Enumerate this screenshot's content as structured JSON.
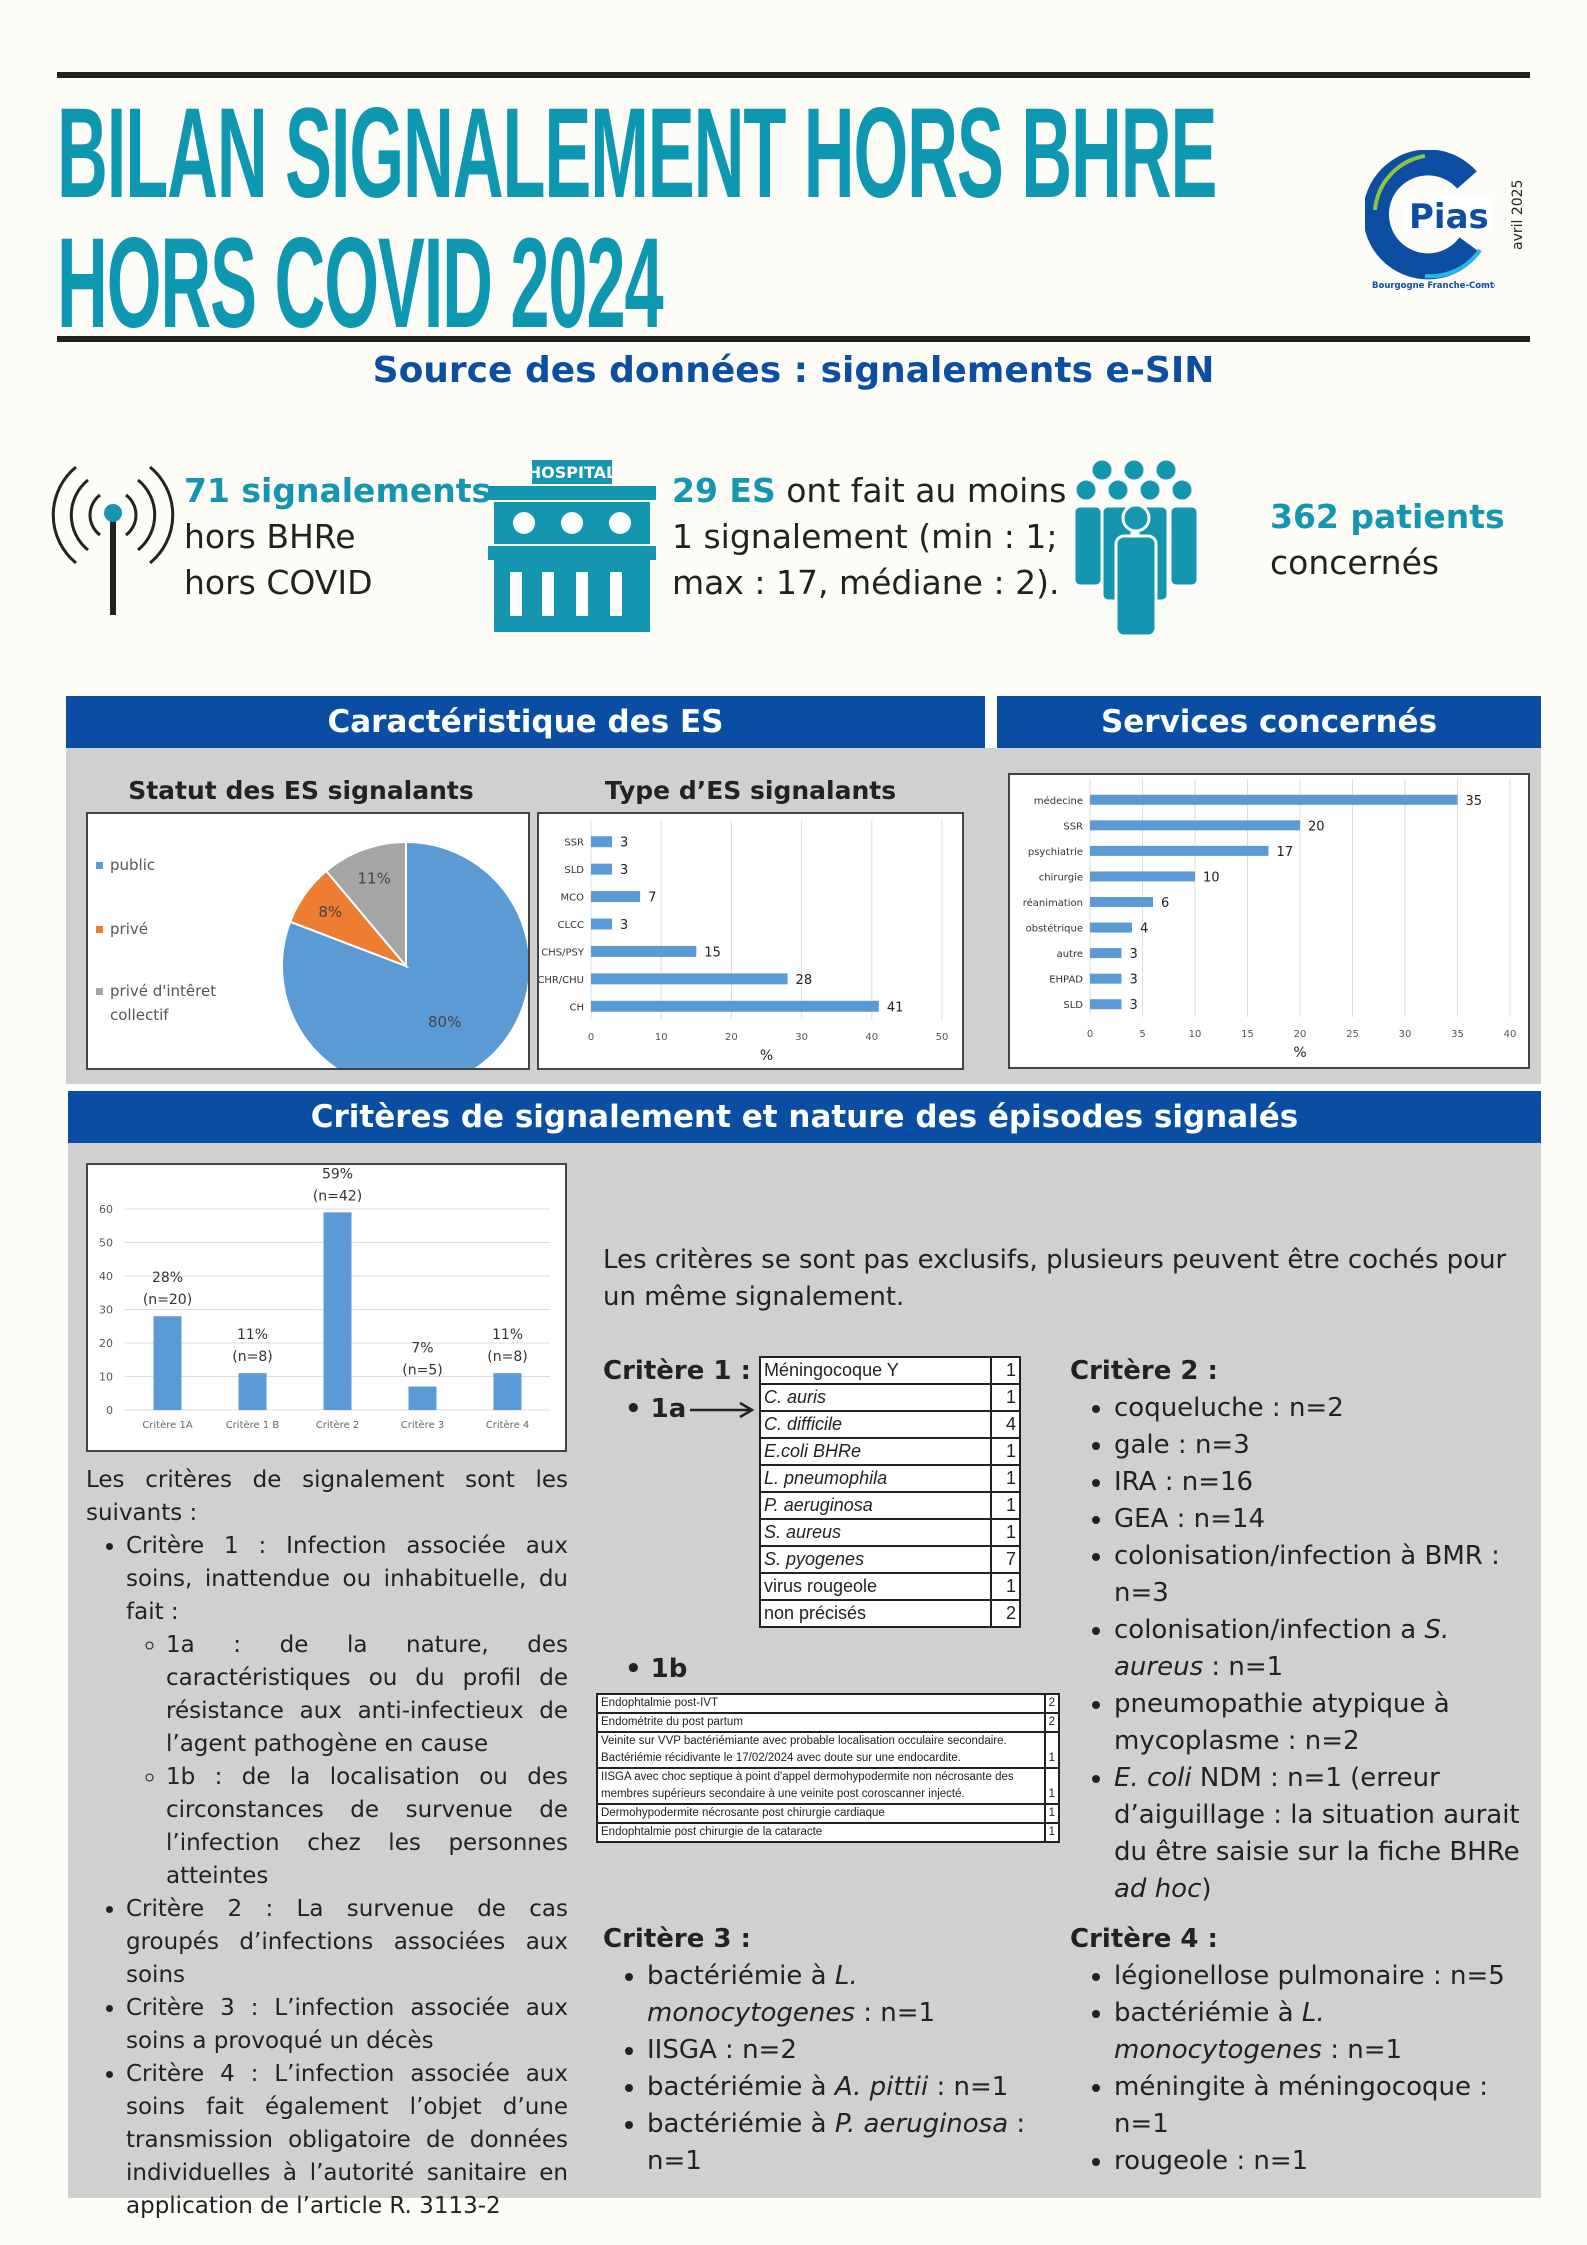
{
  "header": {
    "title_line1": "BILAN SIGNALEMENT HORS BHRE",
    "title_line2": "HORS COVID 2024",
    "date": "avril 2025",
    "logo_text": "Pias",
    "logo_region": "Bourgogne Franche-Comté",
    "source": "Source des données : signalements e-SIN"
  },
  "stats": [
    {
      "icon": "antenna-icon",
      "bold": "71 signalements",
      "lines": [
        "hors BHRe",
        "hors COVID"
      ]
    },
    {
      "icon": "hospital-icon",
      "icon_label": "HOSPITAL",
      "bold": "29 ES",
      "rest": " ont fait au moins",
      "lines": [
        "1 signalement (min : 1;",
        "max : 17, médiane : 2)."
      ]
    },
    {
      "icon": "people-icon",
      "bold": "362 patients",
      "lines": [
        "concernés"
      ]
    }
  ],
  "sections": {
    "es": "Caractéristique des ES",
    "services": "Services concernés",
    "criteres": "Critères de signalement et nature des épisodes signalés"
  },
  "colors": {
    "accent": "#0e97b1",
    "header_blue": "#0a4ea3",
    "bar": "#5b9bd5",
    "orange": "#ed7d31",
    "grey": "#a5a5a5"
  },
  "chart_data": [
    {
      "type": "pie",
      "title": "Statut des ES signalants",
      "categories": [
        "public",
        "privé",
        "privé d'intêret collectif"
      ],
      "values": [
        80,
        8,
        11
      ],
      "labels": [
        "80%",
        "8%",
        "11%"
      ]
    },
    {
      "type": "bar",
      "orientation": "horizontal",
      "title": "Type d’ES signalants",
      "categories": [
        "SSR",
        "SLD",
        "MCO",
        "CLCC",
        "CHS/PSY",
        "CHR/CHU",
        "CH"
      ],
      "values": [
        3,
        3,
        7,
        3,
        15,
        28,
        41
      ],
      "xlabel": "%",
      "xlim": [
        0,
        50
      ],
      "ticks": [
        0,
        10,
        20,
        30,
        40,
        50
      ],
      "grid": true
    },
    {
      "type": "bar",
      "orientation": "horizontal",
      "title": "",
      "categories": [
        "médecine",
        "SSR",
        "psychiatrie",
        "chirurgie",
        "réanimation",
        "obstétrique",
        "autre",
        "EHPAD",
        "SLD"
      ],
      "values": [
        35,
        20,
        17,
        10,
        6,
        4,
        3,
        3,
        3
      ],
      "xlabel": "%",
      "xlim": [
        0,
        40
      ],
      "ticks": [
        0,
        5,
        10,
        15,
        20,
        25,
        30,
        35,
        40
      ],
      "grid": true
    },
    {
      "type": "bar",
      "orientation": "vertical",
      "title": "",
      "categories": [
        "Critère 1A",
        "Critère 1 B",
        "Critère 2",
        "Critère 3",
        "Critère 4"
      ],
      "values": [
        28,
        11,
        59,
        7,
        11
      ],
      "labels": [
        [
          "28%",
          "(n=20)"
        ],
        [
          "11%",
          "(n=8)"
        ],
        [
          "59%",
          "(n=42)"
        ],
        [
          "7%",
          "(n=5)"
        ],
        [
          "11%",
          "(n=8)"
        ]
      ],
      "ylim": [
        0,
        60
      ],
      "ticks": [
        0,
        10,
        20,
        30,
        40,
        50,
        60
      ],
      "grid": true
    }
  ],
  "left_text": {
    "intro": "Les critères de signalement sont les suivants :",
    "c1": "Critère 1 : Infection associée aux soins, inattendue ou inhabituelle, du fait :",
    "c1a": "1a : de la nature, des caractéristiques ou du profil de résistance aux anti-infectieux de l’agent pathogène en cause",
    "c1b": "1b : de la localisation ou des circonstances de survenue de l’infection chez les personnes atteintes",
    "c2": "Critère 2 : La survenue de cas groupés d’infections associées aux soins",
    "c3": "Critère 3 : L’infection associée aux soins a provoqué un décès",
    "c4": "Critère 4 : L’infection associée aux soins fait également l’objet d’une transmission obligatoire de données individuelles à l’autorité sanitaire en application de l’article R. 3113-2"
  },
  "right_text": {
    "note": "Les critères se sont pas exclusifs, plusieurs peuvent être cochés pour un même signalement.",
    "c1_title": "Critère 1 :",
    "c1a_label": "1a",
    "c1b_label": "1b",
    "table_1a": [
      [
        "Méningocoque Y",
        "1",
        false
      ],
      [
        "C. auris",
        "1",
        true
      ],
      [
        "C. difficile",
        "4",
        true
      ],
      [
        "E.coli BHRe",
        "1",
        true
      ],
      [
        "L. pneumophila",
        "1",
        true
      ],
      [
        "P. aeruginosa",
        "1",
        true
      ],
      [
        "S. aureus",
        "1",
        true
      ],
      [
        "S. pyogenes",
        "7",
        true
      ],
      [
        "virus rougeole",
        "1",
        false
      ],
      [
        "non précisés",
        "2",
        false
      ]
    ],
    "table_1b": [
      [
        "Endophtalmie post-IVT",
        "2"
      ],
      [
        "Endométrite du post partum",
        "2"
      ],
      [
        "Veinite sur VVP bactériémiante avec probable localisation occulaire secondaire.\nBactériémie récidivante le 17/02/2024 avec doute sur une endocardite.",
        "1"
      ],
      [
        "IISGA avec choc septique à point d'appel dermohypodermite non nécrosante des membres supérieurs secondaire à une veinite post coroscanner injecté.",
        "1"
      ],
      [
        "Dermohypodermite nécrosante post chirurgie cardiaque",
        "1"
      ],
      [
        "Endophtalmie post chirurgie de la cataracte",
        "1"
      ]
    ],
    "c2_title": "Critère 2 :",
    "c2_items": [
      "coqueluche : n=2",
      "gale : n=3",
      "IRA : n=16",
      "GEA : n=14",
      "colonisation/infection à BMR : n=3",
      "colonisation/infection a <i>S. aureus</i> : n=1",
      "pneumopathie atypique à mycoplasme : n=2",
      "<i>E. coli</i> NDM : n=1 (erreur d’aiguillage : la situation aurait du être saisie sur la fiche BHRe <i>ad hoc</i>)"
    ],
    "c3_title": "Critère 3 :",
    "c3_items": [
      "bactériémie à <i>L. monocytogenes</i> : n=1",
      "IISGA : n=2",
      "bactériémie à <i>A. pittii</i> : n=1",
      "bactériémie à <i>P. aeruginosa</i> : n=1"
    ],
    "c4_title": "Critère 4 :",
    "c4_items": [
      "légionellose pulmonaire : n=5",
      "bactériémie à <i>L. monocytogenes</i> : n=1",
      "méningite à méningocoque : n=1",
      "rougeole : n=1"
    ]
  }
}
